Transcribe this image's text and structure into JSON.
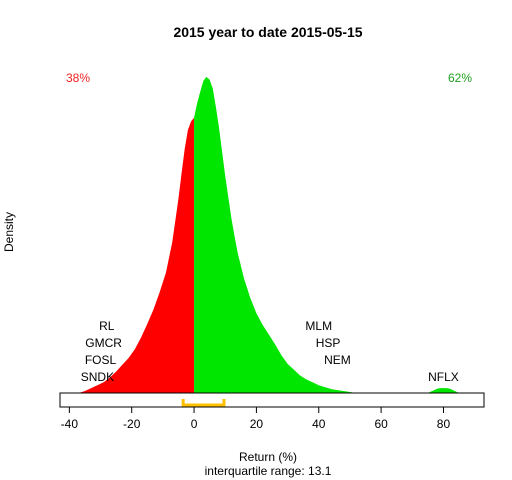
{
  "chart_data": {
    "type": "area",
    "title": "2015  year to date 2015-05-15",
    "xlabel": "Return (%)",
    "ylabel": "Density",
    "subtitle": "interquartile range: 13.1",
    "xlim": [
      -43,
      93
    ],
    "x_ticks": [
      -40,
      -20,
      0,
      20,
      40,
      60,
      80
    ],
    "split_at": 0,
    "left_share_label": "38%",
    "right_share_label": "62%",
    "colors": {
      "negative": "#ff0000",
      "positive": "#00e600",
      "left_pct": "#ee2222",
      "right_pct": "#22a022",
      "iqr": "#ffc000"
    },
    "density": {
      "x": [
        -37,
        -35,
        -33,
        -31,
        -29,
        -27,
        -25,
        -23,
        -21,
        -19,
        -17,
        -15,
        -13,
        -11,
        -9,
        -7,
        -5,
        -4,
        -3,
        -2,
        -1,
        0,
        1,
        2,
        3,
        4,
        5,
        6,
        7,
        8,
        9,
        10,
        11,
        12,
        13,
        14,
        16,
        18,
        20,
        22,
        24,
        26,
        28,
        30,
        32,
        34,
        36,
        38,
        40,
        42,
        44,
        46,
        48,
        50,
        52
      ],
      "density": [
        0.0,
        0.002,
        0.005,
        0.008,
        0.011,
        0.016,
        0.022,
        0.029,
        0.036,
        0.045,
        0.057,
        0.071,
        0.086,
        0.104,
        0.124,
        0.155,
        0.2,
        0.226,
        0.251,
        0.27,
        0.279,
        0.283,
        0.298,
        0.31,
        0.321,
        0.325,
        0.322,
        0.313,
        0.294,
        0.273,
        0.248,
        0.223,
        0.201,
        0.179,
        0.161,
        0.144,
        0.118,
        0.098,
        0.082,
        0.07,
        0.06,
        0.05,
        0.039,
        0.03,
        0.024,
        0.018,
        0.014,
        0.011,
        0.008,
        0.006,
        0.004,
        0.003,
        0.002,
        0.001,
        0.0
      ]
    },
    "tail_bump": {
      "x": [
        75,
        76,
        77,
        78,
        79,
        80,
        81,
        82,
        83,
        84,
        85
      ],
      "density": [
        0.0,
        0.0015,
        0.003,
        0.0045,
        0.005,
        0.005,
        0.005,
        0.0045,
        0.003,
        0.0015,
        0.0
      ]
    },
    "ylim": [
      0,
      0.33
    ],
    "iqr_bracket": {
      "from": -3.5,
      "to": 9.6
    },
    "tickers": [
      {
        "label": "RL",
        "x": -28
      },
      {
        "label": "GMCR",
        "x": -29
      },
      {
        "label": "FOSL",
        "x": -30
      },
      {
        "label": "SNDK",
        "x": -31
      },
      {
        "label": "MLM",
        "x": 40
      },
      {
        "label": "HSP",
        "x": 43
      },
      {
        "label": "NEM",
        "x": 46
      },
      {
        "label": "NFLX",
        "x": 80
      }
    ]
  }
}
